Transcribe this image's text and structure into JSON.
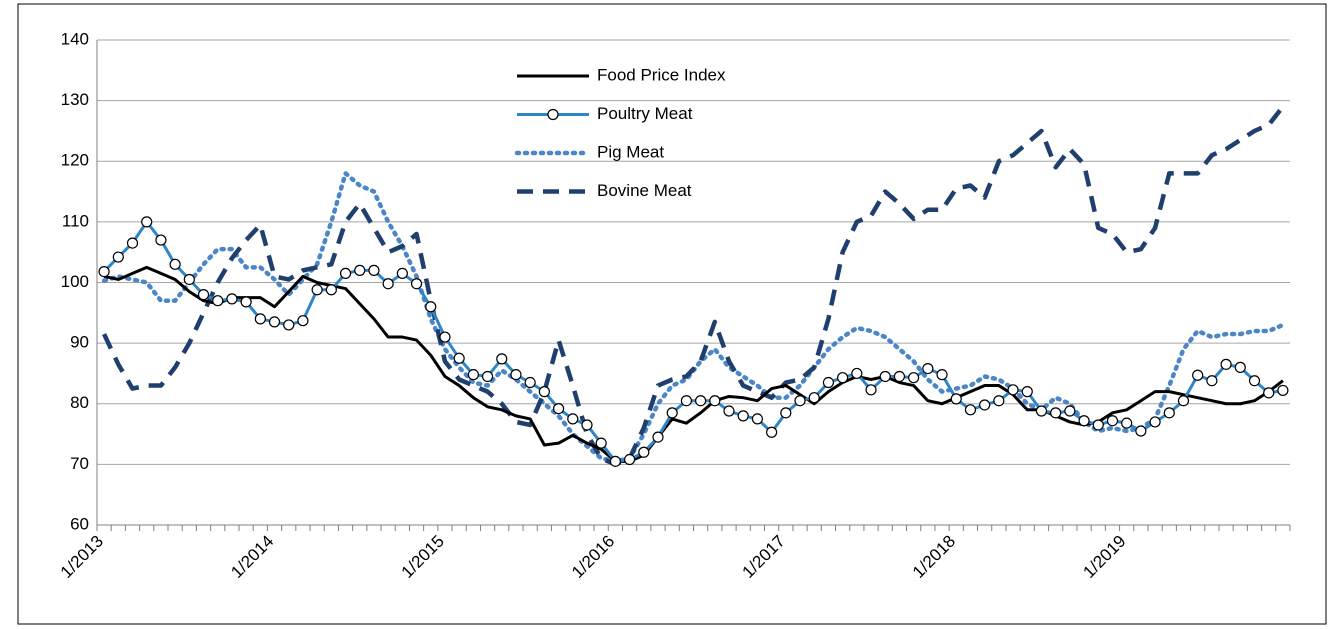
{
  "chart_data": {
    "type": "line",
    "categories": [
      "1/2013",
      null,
      null,
      null,
      null,
      null,
      null,
      null,
      null,
      null,
      null,
      null,
      "1/2014",
      null,
      null,
      null,
      null,
      null,
      null,
      null,
      null,
      null,
      null,
      null,
      "1/2015",
      null,
      null,
      null,
      null,
      null,
      null,
      null,
      null,
      null,
      null,
      null,
      "1/2016",
      null,
      null,
      null,
      null,
      null,
      null,
      null,
      null,
      null,
      null,
      null,
      "1/2017",
      null,
      null,
      null,
      null,
      null,
      null,
      null,
      null,
      null,
      null,
      null,
      "1/2018",
      null,
      null,
      null,
      null,
      null,
      null,
      null,
      null,
      null,
      null,
      null,
      "1/2019",
      null,
      null,
      null,
      null,
      null,
      null,
      null,
      null,
      null,
      null,
      null
    ],
    "series": [
      {
        "name": "Food Price Index",
        "color": "#000000",
        "style": "solid",
        "marker": false,
        "values": [
          101,
          100.5,
          101.5,
          102.5,
          101.5,
          100.5,
          98.5,
          97,
          96.5,
          97.5,
          97.5,
          97.5,
          96,
          98.5,
          101,
          100,
          99.5,
          99,
          96.5,
          94,
          91,
          91,
          90.5,
          88,
          84.5,
          83,
          81,
          79.5,
          79,
          78,
          77.5,
          73.2,
          73.5,
          74.8,
          73.5,
          72.5,
          70.5,
          70.5,
          71.5,
          74.5,
          77.5,
          76.8,
          78.5,
          80.5,
          81.2,
          81,
          80.5,
          82.5,
          83,
          81.5,
          80,
          82,
          83.5,
          84.5,
          84,
          84.5,
          83.5,
          83,
          80.5,
          80,
          81,
          82,
          83,
          83,
          81.5,
          79,
          79,
          78,
          77,
          76.5,
          77,
          78.5,
          79,
          80.5,
          82,
          82,
          81.5,
          81,
          80.5,
          80,
          80,
          80.5,
          82,
          83.8
        ]
      },
      {
        "name": "Poultry Meat",
        "color": "#2e86c8",
        "style": "solid",
        "marker": true,
        "values": [
          101.8,
          104.2,
          106.5,
          110,
          107,
          103,
          100.5,
          98,
          97,
          97.3,
          96.8,
          94,
          93.5,
          93,
          93.7,
          98.8,
          98.8,
          101.5,
          102,
          102,
          99.8,
          101.5,
          99.8,
          96,
          91,
          87.5,
          84.8,
          84.5,
          87.4,
          84.8,
          83.5,
          82,
          79.2,
          77.5,
          76.5,
          73.5,
          70.5,
          70.8,
          72,
          74.5,
          78.5,
          80.5,
          80.5,
          80.5,
          78.8,
          78,
          77.5,
          75.3,
          78.5,
          80.5,
          81,
          83.5,
          84.3,
          85,
          82.3,
          84.5,
          84.5,
          84.3,
          85.8,
          84.8,
          80.8,
          79,
          79.8,
          80.5,
          82.3,
          82,
          78.8,
          78.5,
          78.8,
          77.2,
          76.5,
          77.2,
          76.8,
          75.5,
          77,
          78.5,
          80.5,
          84.7,
          83.8,
          86.5,
          86,
          83.8,
          81.8,
          82.2
        ]
      },
      {
        "name": "Pig Meat",
        "color": "#4a86c8",
        "style": "dotted",
        "marker": false,
        "values": [
          100.3,
          101,
          100.5,
          100,
          97,
          97,
          100,
          103,
          105.5,
          105.5,
          102.5,
          102.5,
          100.5,
          98,
          100.5,
          103,
          110,
          118,
          116,
          115,
          110,
          106,
          101,
          94,
          89,
          86,
          83.5,
          83,
          85.5,
          84,
          82,
          80,
          78,
          75,
          73,
          71,
          70.5,
          71,
          75,
          80,
          83,
          84,
          87,
          89,
          86,
          84.5,
          83,
          81,
          81,
          83,
          86,
          89,
          91,
          92.5,
          92,
          91,
          89,
          87,
          84,
          82,
          82.5,
          83,
          84.5,
          84,
          82.5,
          80,
          79,
          81,
          80,
          77,
          75.5,
          76,
          75.5,
          76,
          77.5,
          83,
          89,
          92,
          91,
          91.5,
          91.5,
          92,
          92,
          93
        ]
      },
      {
        "name": "Bovine Meat",
        "color": "#1f3f6e",
        "style": "dashed",
        "marker": false,
        "values": [
          91.5,
          86.5,
          82.5,
          83,
          83,
          86,
          90,
          95,
          100,
          104,
          107,
          109.5,
          101,
          100.5,
          102,
          102.5,
          103,
          110,
          113,
          109,
          105,
          106,
          108,
          97,
          87,
          84,
          83,
          82,
          80,
          77,
          76.5,
          82,
          90.5,
          83,
          75,
          71,
          70,
          71,
          76,
          83,
          84,
          84.5,
          87,
          93.5,
          87,
          83,
          82,
          81,
          83.5,
          84,
          86,
          94,
          105,
          110,
          111,
          115,
          113,
          110.5,
          112,
          112,
          115.5,
          116,
          114,
          120,
          121,
          123,
          125,
          119,
          122,
          119.5,
          109,
          108,
          105,
          105.5,
          109,
          118,
          118,
          118,
          121,
          122,
          123.5,
          125,
          126,
          129
        ]
      }
    ],
    "ylim": [
      60,
      140
    ],
    "yticks": [
      60,
      70,
      80,
      90,
      100,
      110,
      120,
      130,
      140
    ],
    "grid": true,
    "legend": "top-center"
  }
}
